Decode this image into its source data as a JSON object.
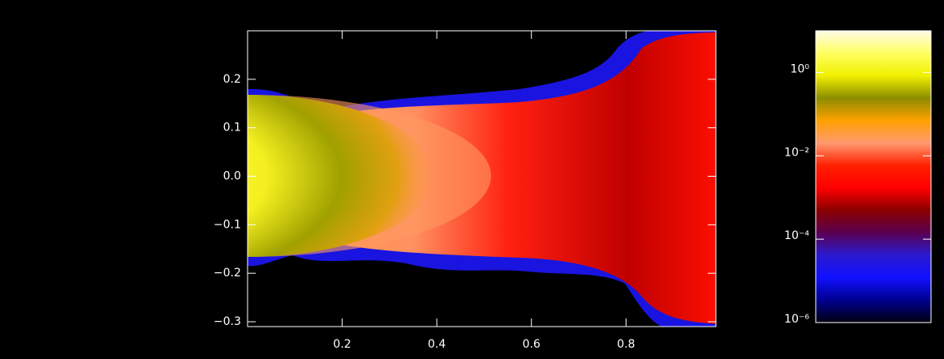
{
  "chart_data": {
    "type": "heatmap",
    "xlim": [
      0.0,
      0.99
    ],
    "xticks": [
      0.2,
      0.4,
      0.6,
      0.8
    ],
    "ylim": [
      -0.31,
      0.3
    ],
    "yticks": [
      0.2,
      0.1,
      {
        "value": 0,
        "label": "0.0"
      },
      {
        "value": -0.1,
        "label": "−0.1"
      },
      {
        "value": -0.2,
        "label": "−0.2"
      },
      {
        "value": -0.3,
        "label": "−0.3"
      }
    ],
    "colorbar": {
      "log": true,
      "lim": [
        1e-06,
        10
      ],
      "ticks": [
        {
          "value": 1,
          "label": "10⁰"
        },
        {
          "value": 0.01,
          "label": "10⁻²"
        },
        {
          "value": 0.0001,
          "label": "10⁻⁴"
        },
        {
          "value": 1e-06,
          "label": "10⁻⁶"
        }
      ],
      "colormap": [
        "#fffbe8",
        "#ffff60",
        "#f0f000",
        "#8c8c00",
        "#ffa000",
        "#ff9a70",
        "#ff2000",
        "#ff0000",
        "#8a0000",
        "#5a0050",
        "#2a1ad0",
        "#1010ff",
        "#000090",
        "#000010"
      ]
    }
  }
}
